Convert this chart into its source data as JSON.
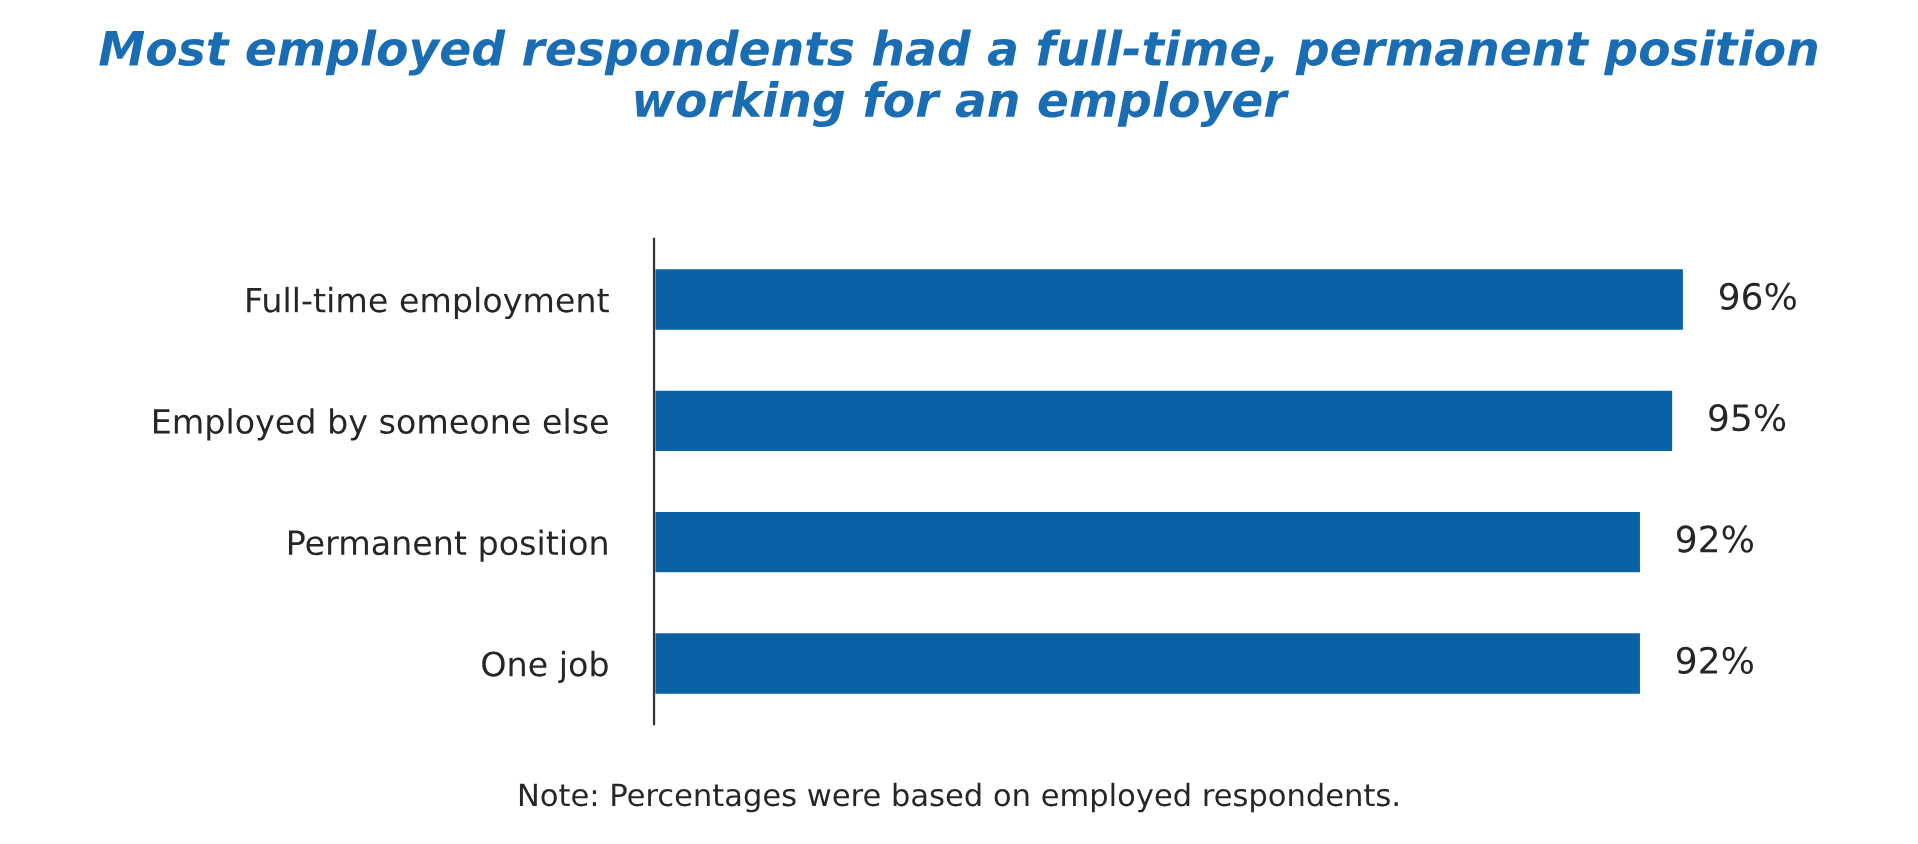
{
  "chart_data": {
    "type": "bar",
    "orientation": "horizontal",
    "title": "Most employed respondents had a full-time, permanent position\nworking for an employer",
    "categories": [
      "Full-time employment",
      "Employed by someone else",
      "Permanent position",
      "One job"
    ],
    "values": [
      96,
      95,
      92,
      92
    ],
    "value_labels": [
      "96%",
      "95%",
      "92%",
      "92%"
    ],
    "color": "#0a62a5",
    "tick_labels": "y",
    "grid": false,
    "legend": false,
    "annotations": [
      "Note: Percentages were based on employed respondents."
    ]
  }
}
